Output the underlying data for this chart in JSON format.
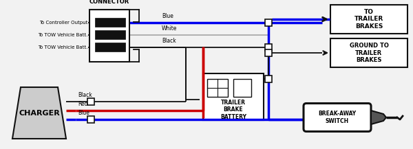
{
  "bg": "#f2f2f2",
  "blue": "#0000ee",
  "red": "#cc0000",
  "blk": "#111111",
  "wht": "#aaaaaa",
  "dkgray": "#555555",
  "ltgray": "#cccccc",
  "lw_thick": 2.5,
  "lw_thin": 1.3,
  "trailer_connector_title": "TRAILER\nCONNECTOR",
  "left_labels": [
    "To Controller Output",
    "To TOW Vehicle Batt.",
    "To TOW Vehicle Batt."
  ],
  "wire_names": [
    "Blue",
    "White",
    "Black"
  ],
  "rb1": "TO\nTRAILER\nBRAKES",
  "rb2": "GROUND TO\nTRAILER\nBRAKES",
  "charger_label": "CHARGER",
  "battery_label": "TRAILER\nBRAKE\nBATTERY",
  "breakaway_label": "BREAK-AWAY\nSWITCH",
  "charger_wires": [
    "Black",
    "Red",
    "Blue"
  ]
}
